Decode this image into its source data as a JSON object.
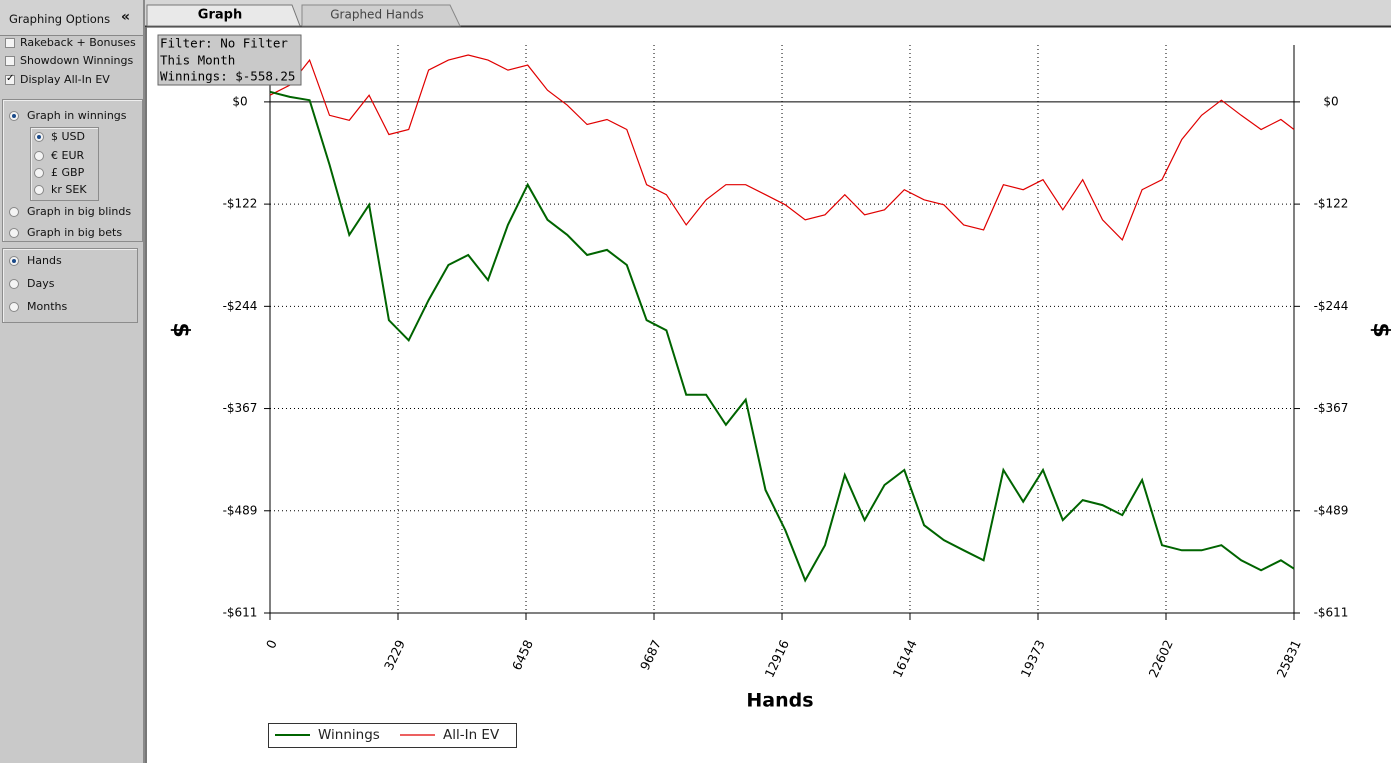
{
  "sidebar": {
    "title": "Graphing Options",
    "collapse": "«",
    "options": [
      {
        "label": "Rakeback + Bonuses",
        "checked": false
      },
      {
        "label": "Showdown Winnings",
        "checked": false
      },
      {
        "label": "Display All-In EV",
        "checked": true
      }
    ],
    "graph_modes": [
      {
        "label": "Graph in winnings",
        "selected": true
      },
      {
        "label": "Graph in big blinds",
        "selected": false
      },
      {
        "label": "Graph in big bets",
        "selected": false
      }
    ],
    "currencies": [
      {
        "label": "$ USD",
        "selected": true
      },
      {
        "label": "€ EUR",
        "selected": false
      },
      {
        "label": "£ GBP",
        "selected": false
      },
      {
        "label": "kr SEK",
        "selected": false
      }
    ],
    "intervals": [
      {
        "label": "Hands",
        "selected": true
      },
      {
        "label": "Days",
        "selected": false
      },
      {
        "label": "Months",
        "selected": false
      }
    ]
  },
  "tabs": [
    {
      "label": "Graph",
      "active": true
    },
    {
      "label": "Graphed Hands",
      "active": false
    }
  ],
  "filter_box": [
    "Filter: No Filter",
    "This Month",
    "Winnings: $-558.25"
  ],
  "chart_data": {
    "type": "line",
    "x_label": "Hands",
    "y_label": "$",
    "grid": true,
    "x": [
      0,
      500,
      1000,
      1500,
      2000,
      2500,
      3000,
      3500,
      4000,
      4500,
      5000,
      5500,
      6000,
      6500,
      7000,
      7500,
      8000,
      8500,
      9000,
      9500,
      10000,
      10500,
      11000,
      11500,
      12000,
      12500,
      13000,
      13500,
      14000,
      14500,
      15000,
      15500,
      16000,
      16500,
      17000,
      17500,
      18000,
      18500,
      19000,
      19500,
      20000,
      20500,
      21000,
      21500,
      22000,
      22500,
      23000,
      23500,
      24000,
      24500,
      25000,
      25500,
      25831
    ],
    "series": [
      {
        "name": "Winnings",
        "color": "#006400",
        "values": [
          12,
          6,
          2,
          -75,
          -159,
          -123,
          -261,
          -285,
          -237,
          -195,
          -183,
          -213,
          -147,
          -99,
          -141,
          -159,
          -183,
          -177,
          -195,
          -261,
          -273,
          -350,
          -350,
          -386,
          -356,
          -464,
          -512,
          -572,
          -530,
          -446,
          -500,
          -458,
          -440,
          -506,
          -524,
          -536,
          -548,
          -440,
          -478,
          -440,
          -500,
          -476,
          -482,
          -494,
          -452,
          -530,
          -536,
          -536,
          -530,
          -548,
          -560,
          -548,
          -558
        ]
      },
      {
        "name": "All-In EV",
        "color": "#e00000",
        "values": [
          8,
          20,
          50,
          -16,
          -22,
          8,
          -39,
          -33,
          38,
          50,
          56,
          50,
          38,
          44,
          14,
          -4,
          -27,
          -21,
          -33,
          -99,
          -111,
          -147,
          -117,
          -99,
          -99,
          -111,
          -123,
          -141,
          -135,
          -111,
          -135,
          -129,
          -105,
          -117,
          -123,
          -147,
          -153,
          -99,
          -105,
          -93,
          -129,
          -93,
          -141,
          -165,
          -105,
          -93,
          -45,
          -16,
          2,
          -16,
          -33,
          -21,
          -33
        ]
      }
    ],
    "xlim": [
      0,
      25831
    ],
    "xticks": [
      0,
      3229,
      6458,
      9687,
      12916,
      16144,
      19373,
      22602,
      25831
    ],
    "ylim": [
      -611,
      68
    ],
    "yticks": [
      {
        "value": 0,
        "label": "$0"
      },
      {
        "value": -122.2,
        "label": "-$122"
      },
      {
        "value": -244.4,
        "label": "-$244"
      },
      {
        "value": -366.6,
        "label": "-$367"
      },
      {
        "value": -488.8,
        "label": "-$489"
      },
      {
        "value": -611,
        "label": "-$611"
      }
    ]
  }
}
